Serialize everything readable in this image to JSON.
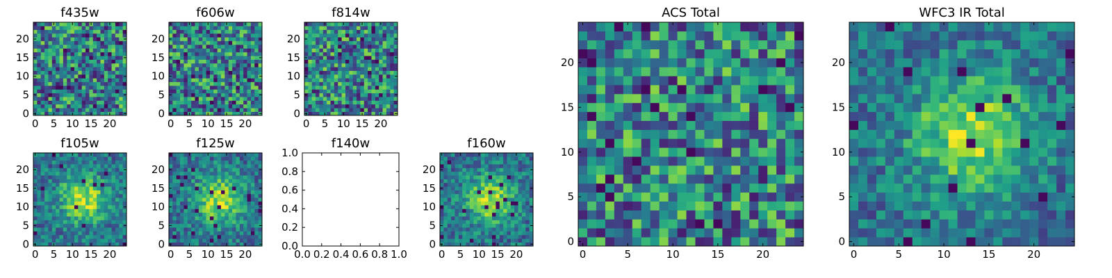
{
  "chart_data": [
    {
      "type": "heatmap",
      "title": "f435w",
      "xticks": [
        "0",
        "5",
        "10",
        "15",
        "20"
      ],
      "yticks": [
        "0",
        "5",
        "10",
        "15",
        "20"
      ],
      "xlim": [
        -0.5,
        24.5
      ],
      "ylim": [
        -0.5,
        24.5
      ],
      "grid_size": [
        25,
        25
      ],
      "colormap": "viridis",
      "pattern": "uniform-noise",
      "seed": 11
    },
    {
      "type": "heatmap",
      "title": "f606w",
      "xticks": [
        "0",
        "5",
        "10",
        "15",
        "20"
      ],
      "yticks": [
        "0",
        "5",
        "10",
        "15",
        "20"
      ],
      "xlim": [
        -0.5,
        24.5
      ],
      "ylim": [
        -0.5,
        24.5
      ],
      "grid_size": [
        25,
        25
      ],
      "colormap": "viridis",
      "pattern": "uniform-noise",
      "seed": 23
    },
    {
      "type": "heatmap",
      "title": "f814w",
      "xticks": [
        "0",
        "5",
        "10",
        "15",
        "20"
      ],
      "yticks": [
        "0",
        "5",
        "10",
        "15",
        "20"
      ],
      "xlim": [
        -0.5,
        24.5
      ],
      "ylim": [
        -0.5,
        24.5
      ],
      "grid_size": [
        25,
        25
      ],
      "colormap": "viridis",
      "pattern": "uniform-noise",
      "seed": 37
    },
    {
      "type": "heatmap",
      "title": "f105w",
      "xticks": [
        "0",
        "5",
        "10",
        "15",
        "20"
      ],
      "yticks": [
        "0",
        "5",
        "10",
        "15",
        "20"
      ],
      "xlim": [
        -0.5,
        24.5
      ],
      "ylim": [
        -0.5,
        24.5
      ],
      "grid_size": [
        25,
        25
      ],
      "colormap": "viridis",
      "pattern": "central-source",
      "source_center": [
        13,
        12
      ],
      "seed": 41
    },
    {
      "type": "heatmap",
      "title": "f125w",
      "xticks": [
        "0",
        "5",
        "10",
        "15",
        "20"
      ],
      "yticks": [
        "0",
        "5",
        "10",
        "15",
        "20"
      ],
      "xlim": [
        -0.5,
        24.5
      ],
      "ylim": [
        -0.5,
        24.5
      ],
      "grid_size": [
        25,
        25
      ],
      "colormap": "viridis",
      "pattern": "central-source",
      "source_center": [
        13,
        12
      ],
      "seed": 53
    },
    {
      "type": "empty",
      "title": "f140w",
      "xticks": [
        "0.0",
        "0.2",
        "0.4",
        "0.6",
        "0.8",
        "1.0"
      ],
      "yticks": [
        "0.0",
        "0.2",
        "0.4",
        "0.6",
        "0.8",
        "1.0"
      ],
      "xlim": [
        0,
        1
      ],
      "ylim": [
        0,
        1
      ]
    },
    {
      "type": "heatmap",
      "title": "f160w",
      "xticks": [
        "0",
        "5",
        "10",
        "15",
        "20"
      ],
      "yticks": [
        "0",
        "5",
        "10",
        "15",
        "20"
      ],
      "xlim": [
        -0.5,
        24.5
      ],
      "ylim": [
        -0.5,
        24.5
      ],
      "grid_size": [
        25,
        25
      ],
      "colormap": "viridis",
      "pattern": "central-source",
      "source_center": [
        13,
        12
      ],
      "seed": 67
    },
    {
      "type": "heatmap",
      "title": "ACS Total",
      "xticks": [
        "0",
        "5",
        "10",
        "15",
        "20"
      ],
      "yticks": [
        "0",
        "5",
        "10",
        "15",
        "20"
      ],
      "xlim": [
        -0.5,
        24.5
      ],
      "ylim": [
        -0.5,
        24.5
      ],
      "grid_size": [
        25,
        25
      ],
      "colormap": "viridis",
      "pattern": "uniform-noise",
      "seed": 79
    },
    {
      "type": "heatmap",
      "title": "WFC3 IR Total",
      "xticks": [
        "0",
        "5",
        "10",
        "15",
        "20"
      ],
      "yticks": [
        "0",
        "5",
        "10",
        "15",
        "20"
      ],
      "xlim": [
        -0.5,
        24.5
      ],
      "ylim": [
        -0.5,
        24.5
      ],
      "grid_size": [
        25,
        25
      ],
      "colormap": "viridis",
      "pattern": "central-source",
      "source_center": [
        13,
        12
      ],
      "seed": 97
    }
  ]
}
